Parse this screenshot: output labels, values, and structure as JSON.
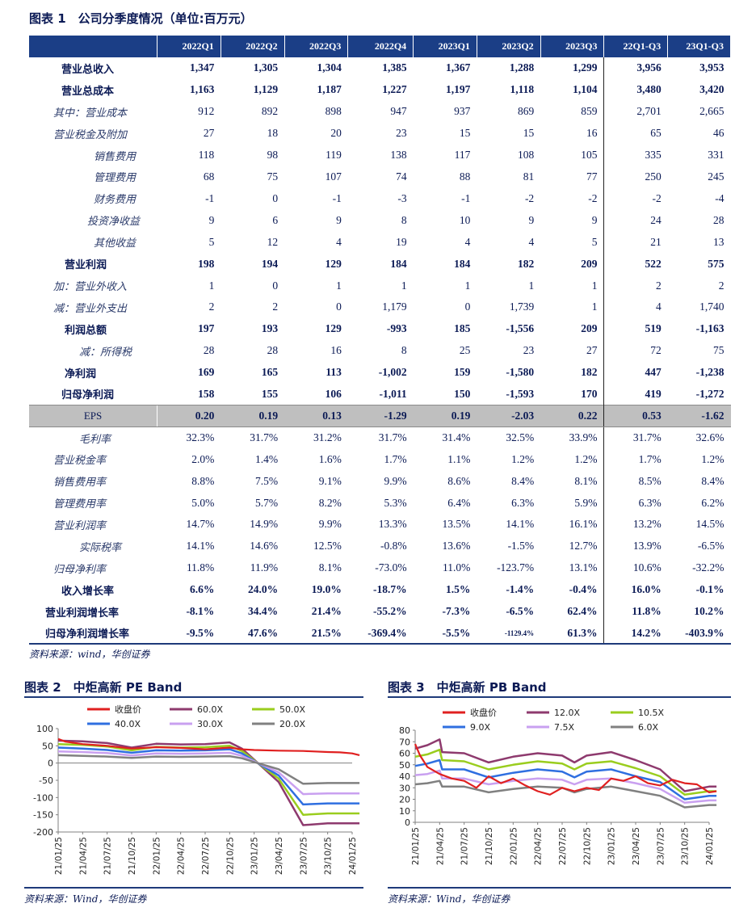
{
  "fig1": {
    "title": "图表 1　公司分季度情况（单位:百万元）",
    "source": "资料来源：wind，华创证券",
    "headers": [
      "",
      "2022Q1",
      "2022Q2",
      "2022Q3",
      "2022Q4",
      "2023Q1",
      "2023Q2",
      "2023Q3",
      "22Q1-Q3",
      "23Q1-Q3"
    ],
    "rows": [
      {
        "label": "营业总收入",
        "style": "b",
        "values": [
          "1,347",
          "1,305",
          "1,304",
          "1,385",
          "1,367",
          "1,288",
          "1,299",
          "3,956",
          "3,953"
        ]
      },
      {
        "label": "营业总成本",
        "style": "b",
        "values": [
          "1,163",
          "1,129",
          "1,187",
          "1,227",
          "1,197",
          "1,118",
          "1,104",
          "3,480",
          "3,420"
        ]
      },
      {
        "label": "其中：营业成本",
        "style": "it",
        "values": [
          "912",
          "892",
          "898",
          "947",
          "937",
          "869",
          "859",
          "2,701",
          "2,665"
        ]
      },
      {
        "label": "营业税金及附加",
        "style": "it",
        "values": [
          "27",
          "18",
          "20",
          "23",
          "15",
          "15",
          "16",
          "65",
          "46"
        ]
      },
      {
        "label": "销售费用",
        "style": "it in4",
        "values": [
          "118",
          "98",
          "119",
          "138",
          "117",
          "108",
          "105",
          "335",
          "331"
        ]
      },
      {
        "label": "管理费用",
        "style": "it in4",
        "values": [
          "68",
          "75",
          "107",
          "74",
          "88",
          "81",
          "77",
          "250",
          "245"
        ]
      },
      {
        "label": "财务费用",
        "style": "it in4",
        "values": [
          "-1",
          "0",
          "-1",
          "-3",
          "-1",
          "-2",
          "-2",
          "-2",
          "-4"
        ]
      },
      {
        "label": "投资净收益",
        "style": "it in3",
        "values": [
          "9",
          "6",
          "9",
          "8",
          "10",
          "9",
          "9",
          "24",
          "28"
        ]
      },
      {
        "label": "其他收益",
        "style": "it in4",
        "values": [
          "5",
          "12",
          "4",
          "19",
          "4",
          "4",
          "5",
          "21",
          "13"
        ]
      },
      {
        "label": "营业利润",
        "style": "b2",
        "values": [
          "198",
          "194",
          "129",
          "184",
          "184",
          "182",
          "209",
          "522",
          "575"
        ]
      },
      {
        "label": "加：营业外收入",
        "style": "it",
        "values": [
          "1",
          "0",
          "1",
          "1",
          "1",
          "1",
          "1",
          "2",
          "2"
        ]
      },
      {
        "label": "减：营业外支出",
        "style": "it",
        "values": [
          "2",
          "2",
          "0",
          "1,179",
          "0",
          "1,739",
          "1",
          "4",
          "1,740"
        ]
      },
      {
        "label": "利润总额",
        "style": "b2",
        "values": [
          "197",
          "193",
          "129",
          "-993",
          "185",
          "-1,556",
          "209",
          "519",
          "-1,163"
        ]
      },
      {
        "label": "减：所得税",
        "style": "it in2",
        "values": [
          "28",
          "28",
          "16",
          "8",
          "25",
          "23",
          "27",
          "72",
          "75"
        ]
      },
      {
        "label": "净利润",
        "style": "b2",
        "values": [
          "169",
          "165",
          "113",
          "-1,002",
          "159",
          "-1,580",
          "182",
          "447",
          "-1,238"
        ]
      },
      {
        "label": "归母净利润",
        "style": "b",
        "values": [
          "158",
          "155",
          "106",
          "-1,011",
          "150",
          "-1,593",
          "170",
          "419",
          "-1,272"
        ]
      },
      {
        "label": "EPS",
        "style": "eps",
        "values": [
          "0.20",
          "0.19",
          "0.13",
          "-1.29",
          "0.19",
          "-2.03",
          "0.22",
          "0.53",
          "-1.62"
        ]
      },
      {
        "label": "毛利率",
        "style": "it in2",
        "values": [
          "32.3%",
          "31.7%",
          "31.2%",
          "31.7%",
          "31.4%",
          "32.5%",
          "33.9%",
          "31.7%",
          "32.6%"
        ]
      },
      {
        "label": "营业税金率",
        "style": "it",
        "values": [
          "2.0%",
          "1.4%",
          "1.6%",
          "1.7%",
          "1.1%",
          "1.2%",
          "1.2%",
          "1.7%",
          "1.2%"
        ]
      },
      {
        "label": "销售费用率",
        "style": "it",
        "values": [
          "8.8%",
          "7.5%",
          "9.1%",
          "9.9%",
          "8.6%",
          "8.4%",
          "8.1%",
          "8.5%",
          "8.4%"
        ]
      },
      {
        "label": "管理费用率",
        "style": "it",
        "values": [
          "5.0%",
          "5.7%",
          "8.2%",
          "5.3%",
          "6.4%",
          "6.3%",
          "5.9%",
          "6.3%",
          "6.2%"
        ]
      },
      {
        "label": "营业利润率",
        "style": "it",
        "values": [
          "14.7%",
          "14.9%",
          "9.9%",
          "13.3%",
          "13.5%",
          "14.1%",
          "16.1%",
          "13.2%",
          "14.5%"
        ]
      },
      {
        "label": "实际税率",
        "style": "it in2",
        "values": [
          "14.1%",
          "14.6%",
          "12.5%",
          "-0.8%",
          "13.6%",
          "-1.5%",
          "12.7%",
          "13.9%",
          "-6.5%"
        ]
      },
      {
        "label": "归母净利率",
        "style": "it",
        "values": [
          "11.8%",
          "11.9%",
          "8.1%",
          "-73.0%",
          "11.0%",
          "-123.7%",
          "13.1%",
          "10.6%",
          "-32.2%"
        ]
      },
      {
        "label": "收入增长率",
        "style": "b",
        "values": [
          "6.6%",
          "24.0%",
          "19.0%",
          "-18.7%",
          "1.5%",
          "-1.4%",
          "-0.4%",
          "16.0%",
          "-0.1%"
        ]
      },
      {
        "label": "营业利润增长率",
        "style": "b3",
        "values": [
          "-8.1%",
          "34.4%",
          "21.4%",
          "-55.2%",
          "-7.3%",
          "-6.5%",
          "62.4%",
          "11.8%",
          "10.2%"
        ]
      },
      {
        "label": "归母净利润增长率",
        "style": "b3",
        "values": [
          "-9.5%",
          "47.6%",
          "21.5%",
          "-369.4%",
          "-5.5%",
          "-1129.4%",
          "61.3%",
          "14.2%",
          "-403.9%"
        ]
      }
    ]
  },
  "chart_data": [
    {
      "type": "line",
      "title": "图表 2　中炬高新 PE Band",
      "source": "资料来源：Wind，华创证券",
      "x_ticks": [
        "21/01/25",
        "21/04/25",
        "21/07/25",
        "21/10/25",
        "22/01/25",
        "22/04/25",
        "22/07/25",
        "22/10/25",
        "23/01/25",
        "23/04/25",
        "23/07/25",
        "23/10/25",
        "24/01/25"
      ],
      "ylim": [
        -200,
        100
      ],
      "y_ticks": [
        100,
        50,
        0,
        -50,
        -100,
        -150,
        -200
      ],
      "legend": [
        {
          "name": "收盘价",
          "color": "#e02020"
        },
        {
          "name": "60.0X",
          "color": "#8e3a6e"
        },
        {
          "name": "50.0X",
          "color": "#9acd1e"
        },
        {
          "name": "40.0X",
          "color": "#2f6fe0"
        },
        {
          "name": "30.0X",
          "color": "#c9a0f0"
        },
        {
          "name": "20.0X",
          "color": "#808080"
        }
      ],
      "series": [
        {
          "name": "收盘价",
          "x": [
            0,
            0.3,
            1,
            2,
            3,
            4,
            5,
            6,
            7,
            7.5,
            8,
            9,
            10,
            11,
            11.5,
            12,
            12.3
          ],
          "y": [
            70,
            62,
            55,
            50,
            42,
            46,
            44,
            40,
            45,
            40,
            38,
            36,
            35,
            32,
            31,
            28,
            23
          ]
        },
        {
          "name": "60.0X",
          "x": [
            0,
            1,
            2,
            3,
            4,
            5,
            6,
            7,
            7.5,
            8,
            9,
            10,
            11,
            12,
            12.3
          ],
          "y": [
            65,
            63,
            58,
            45,
            56,
            54,
            55,
            60,
            42,
            10,
            -55,
            -180,
            -175,
            -175,
            -175
          ]
        },
        {
          "name": "50.0X",
          "x": [
            0,
            1,
            2,
            3,
            4,
            5,
            6,
            7,
            7.5,
            8,
            9,
            10,
            11,
            12,
            12.3
          ],
          "y": [
            55,
            53,
            48,
            37,
            47,
            45,
            46,
            50,
            35,
            8,
            -45,
            -150,
            -146,
            -146,
            -146
          ]
        },
        {
          "name": "40.0X",
          "x": [
            0,
            1,
            2,
            3,
            4,
            5,
            6,
            7,
            7.5,
            8,
            9,
            10,
            11,
            12,
            12.3
          ],
          "y": [
            45,
            42,
            38,
            30,
            37,
            36,
            37,
            40,
            28,
            6,
            -36,
            -120,
            -117,
            -117,
            -117
          ]
        },
        {
          "name": "30.0X",
          "x": [
            0,
            1,
            2,
            3,
            4,
            5,
            6,
            7,
            7.5,
            8,
            9,
            10,
            11,
            12,
            12.3
          ],
          "y": [
            34,
            32,
            29,
            22,
            28,
            27,
            28,
            30,
            21,
            5,
            -27,
            -90,
            -88,
            -88,
            -88
          ]
        },
        {
          "name": "20.0X",
          "x": [
            0,
            1,
            2,
            3,
            4,
            5,
            6,
            7,
            7.5,
            8,
            9,
            10,
            11,
            12,
            12.3
          ],
          "y": [
            23,
            21,
            19,
            15,
            19,
            18,
            19,
            20,
            14,
            3,
            -18,
            -60,
            -58,
            -58,
            -58
          ]
        }
      ]
    },
    {
      "type": "line",
      "title": "图表 3　中炬高新 PB Band",
      "source": "资料来源：Wind，华创证券",
      "x_ticks": [
        "21/01/25",
        "21/04/25",
        "21/07/25",
        "21/10/25",
        "22/01/25",
        "22/04/25",
        "22/07/25",
        "22/10/25",
        "23/01/25",
        "23/04/25",
        "23/07/25",
        "23/10/25",
        "24/01/25"
      ],
      "ylim": [
        0,
        80
      ],
      "y_ticks": [
        80,
        70,
        60,
        50,
        40,
        30,
        20,
        10,
        0
      ],
      "legend": [
        {
          "name": "收盘价",
          "color": "#e02020"
        },
        {
          "name": "12.0X",
          "color": "#8e3a6e"
        },
        {
          "name": "10.5X",
          "color": "#9acd1e"
        },
        {
          "name": "9.0X",
          "color": "#2f6fe0"
        },
        {
          "name": "7.5X",
          "color": "#c9a0f0"
        },
        {
          "name": "6.0X",
          "color": "#808080"
        }
      ],
      "series": [
        {
          "name": "收盘价",
          "x": [
            0,
            0.2,
            0.5,
            1,
            1.5,
            2,
            2.5,
            3,
            3.5,
            4,
            4.5,
            5,
            5.5,
            6,
            6.5,
            7,
            7.5,
            8,
            8.5,
            9,
            9.5,
            10,
            10.5,
            11,
            11.5,
            12,
            12.3
          ],
          "y": [
            68,
            58,
            48,
            42,
            38,
            36,
            30,
            40,
            34,
            38,
            32,
            27,
            24,
            30,
            27,
            30,
            28,
            38,
            36,
            40,
            34,
            32,
            37,
            34,
            33,
            26,
            27
          ]
        },
        {
          "name": "12.0X",
          "x": [
            0,
            0.5,
            1,
            1.1,
            2,
            3,
            4,
            5,
            6,
            6.5,
            7,
            8,
            9,
            10,
            11,
            12,
            12.3
          ],
          "y": [
            64,
            67,
            72,
            61,
            60,
            52,
            57,
            60,
            58,
            52,
            58,
            61,
            54,
            46,
            27,
            31,
            31
          ]
        },
        {
          "name": "10.5X",
          "x": [
            0,
            0.5,
            1,
            1.1,
            2,
            3,
            4,
            5,
            6,
            6.5,
            7,
            8,
            9,
            10,
            11,
            12,
            12.3
          ],
          "y": [
            57,
            59,
            63,
            54,
            53,
            46,
            50,
            53,
            51,
            46,
            51,
            53,
            47,
            40,
            24,
            27,
            27
          ]
        },
        {
          "name": "9.0X",
          "x": [
            0,
            0.5,
            1,
            1.1,
            2,
            3,
            4,
            5,
            6,
            6.5,
            7,
            8,
            9,
            10,
            11,
            12,
            12.3
          ],
          "y": [
            49,
            51,
            54,
            46,
            46,
            39,
            43,
            46,
            44,
            39,
            44,
            46,
            40,
            35,
            20,
            23,
            23
          ]
        },
        {
          "name": "7.5X",
          "x": [
            0,
            0.5,
            1,
            1.1,
            2,
            3,
            4,
            5,
            6,
            6.5,
            7,
            8,
            9,
            10,
            11,
            12,
            12.3
          ],
          "y": [
            41,
            42,
            45,
            38,
            38,
            33,
            36,
            38,
            37,
            33,
            37,
            38,
            34,
            29,
            17,
            19,
            19
          ]
        },
        {
          "name": "6.0X",
          "x": [
            0,
            0.5,
            1,
            1.1,
            2,
            3,
            4,
            5,
            6,
            6.5,
            7,
            8,
            9,
            10,
            11,
            12,
            12.3
          ],
          "y": [
            33,
            34,
            36,
            31,
            31,
            26,
            29,
            31,
            30,
            26,
            29,
            31,
            27,
            23,
            13,
            15,
            15
          ]
        }
      ]
    }
  ]
}
